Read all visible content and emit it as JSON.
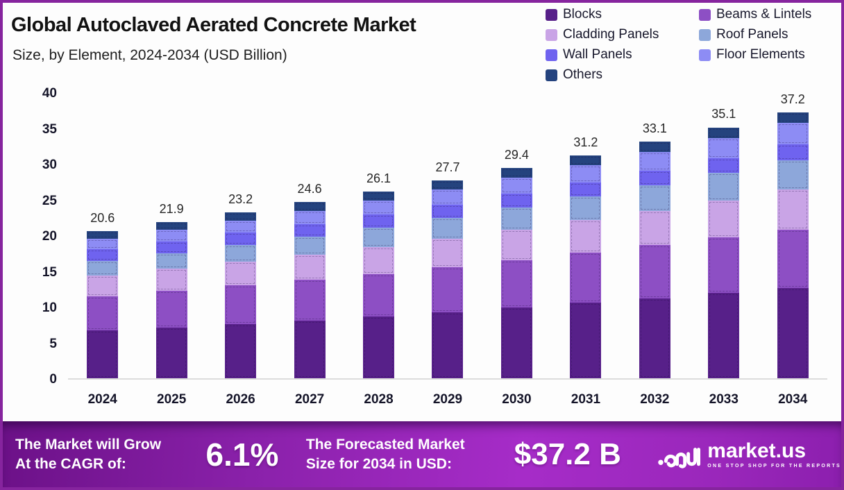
{
  "header": {
    "title": "Global Autoclaved Aerated Concrete Market",
    "subtitle": "Size, by Element, 2024-2034 (USD Billion)"
  },
  "chart_data": {
    "type": "bar",
    "stacked": true,
    "title": "Global Autoclaved Aerated Concrete Market Size, by Element, 2024-2034 (USD Billion)",
    "categories": [
      "2024",
      "2025",
      "2026",
      "2027",
      "2028",
      "2029",
      "2030",
      "2031",
      "2032",
      "2033",
      "2034"
    ],
    "series": [
      {
        "name": "Blocks",
        "color": "#572089",
        "values": [
          6.7,
          7.1,
          7.6,
          8.1,
          8.6,
          9.2,
          9.9,
          10.6,
          11.2,
          11.9,
          12.6
        ]
      },
      {
        "name": "Beams & Lintels",
        "color": "#8d4fc4",
        "values": [
          4.8,
          5.1,
          5.4,
          5.7,
          6.0,
          6.3,
          6.6,
          7.0,
          7.4,
          7.8,
          8.2
        ]
      },
      {
        "name": "Cladding Panels",
        "color": "#c9a4e6",
        "values": [
          2.9,
          3.1,
          3.3,
          3.5,
          3.75,
          4.0,
          4.25,
          4.5,
          4.8,
          5.2,
          5.6
        ]
      },
      {
        "name": "Roof Panels",
        "color": "#8da7da",
        "values": [
          2.0,
          2.15,
          2.3,
          2.5,
          2.7,
          2.9,
          3.1,
          3.3,
          3.6,
          3.8,
          4.1
        ]
      },
      {
        "name": "Wall Panels",
        "color": "#6f63ef",
        "values": [
          1.65,
          1.7,
          1.75,
          1.8,
          1.85,
          1.9,
          1.95,
          2.0,
          2.05,
          2.1,
          2.2
        ]
      },
      {
        "name": "Floor Elements",
        "color": "#8d8cf4",
        "values": [
          1.5,
          1.6,
          1.7,
          1.85,
          2.0,
          2.1,
          2.25,
          2.4,
          2.6,
          2.8,
          3.0
        ]
      },
      {
        "name": "Others",
        "color": "#24437e",
        "values": [
          1.05,
          1.1,
          1.15,
          1.2,
          1.25,
          1.3,
          1.35,
          1.4,
          1.45,
          1.5,
          1.5
        ]
      }
    ],
    "totals": [
      20.6,
      21.9,
      23.2,
      24.6,
      26.1,
      27.7,
      29.4,
      31.2,
      33.1,
      35.1,
      37.2
    ],
    "legend": [
      {
        "label": "Blocks",
        "color": "#572089"
      },
      {
        "label": "Beams & Lintels",
        "color": "#8d4fc4"
      },
      {
        "label": "Cladding Panels",
        "color": "#c9a4e6"
      },
      {
        "label": "Roof Panels",
        "color": "#8da7da"
      },
      {
        "label": "Wall Panels",
        "color": "#6f63ef"
      },
      {
        "label": "Floor Elements",
        "color": "#8d8cf4"
      },
      {
        "label": "Others",
        "color": "#24437e"
      }
    ],
    "legend_position": "top-right",
    "grid": false,
    "xlabel": "",
    "ylabel": "",
    "ylim": [
      0,
      40
    ],
    "yticks": [
      40,
      35,
      30,
      25,
      20,
      15,
      10,
      5,
      0
    ]
  },
  "footer": {
    "cagr_label_1": "The Market will Grow",
    "cagr_label_2": "At the CAGR of:",
    "cagr_value": "6.1%",
    "forecast_label_1": "The Forecasted Market",
    "forecast_label_2": "Size for 2034 in USD:",
    "forecast_value": "$37.2 B",
    "brand_name": "market.us",
    "brand_tagline": "ONE STOP SHOP FOR THE REPORTS"
  }
}
